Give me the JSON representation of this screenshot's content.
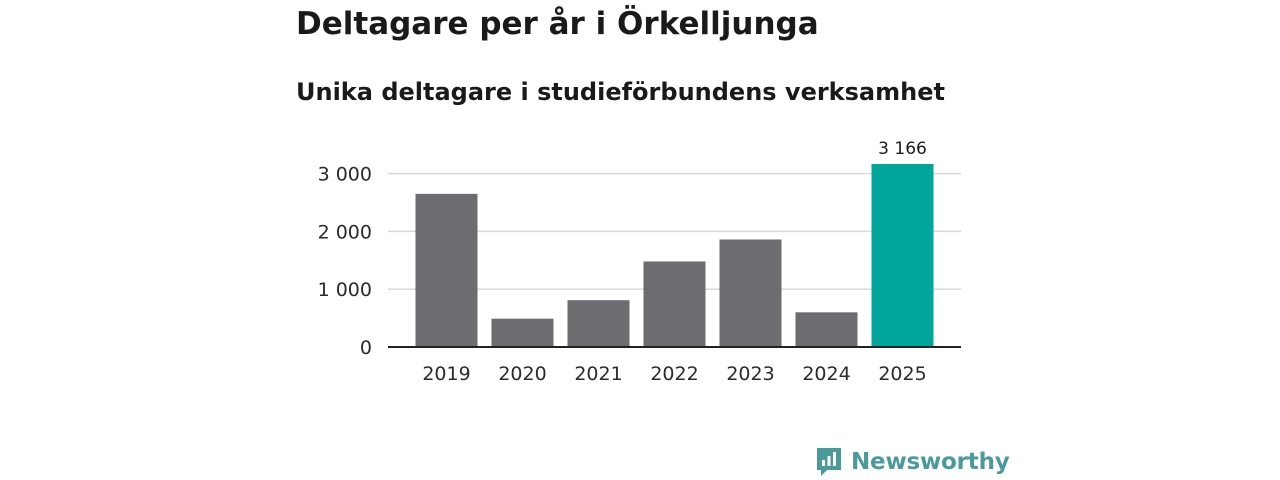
{
  "header": {
    "title": "Deltagare per år i Örkelljunga",
    "subtitle": "Unika deltagare i studieförbundens verksamhet"
  },
  "brand": {
    "name": "Newsworthy",
    "icon": "newsworthy-logo-icon",
    "color": "#4a9a9b"
  },
  "colors": {
    "bar_default": "#6d6c71",
    "bar_highlight": "#00a59b",
    "grid": "#d9d9d9",
    "axis": "#222222"
  },
  "chart_data": {
    "type": "bar",
    "categories": [
      "2019",
      "2020",
      "2021",
      "2022",
      "2023",
      "2024",
      "2025"
    ],
    "values": [
      2650,
      490,
      810,
      1480,
      1860,
      600,
      3166
    ],
    "highlight_index": 6,
    "data_labels": [
      {
        "index": 6,
        "text": "3 166"
      }
    ],
    "yticks": [
      {
        "value": 0,
        "label": "0"
      },
      {
        "value": 1000,
        "label": "1 000"
      },
      {
        "value": 2000,
        "label": "2 000"
      },
      {
        "value": 3000,
        "label": "3 000"
      }
    ],
    "ylim": [
      0,
      3166
    ],
    "grid": true,
    "legend": "none"
  }
}
